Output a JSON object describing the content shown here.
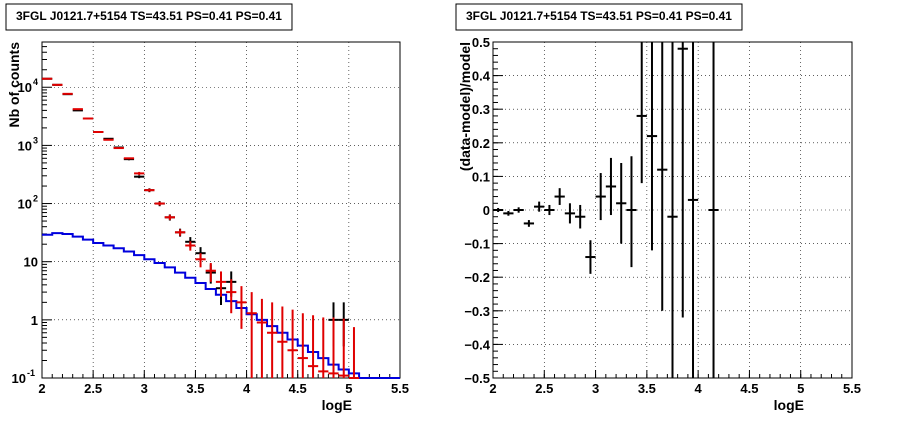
{
  "chart_data": [
    {
      "type": "scatter",
      "title": "3FGL J0121.7+5154 TS=43.51 PS=0.41 PS=0.41",
      "xlabel": "logE",
      "ylabel": "Nb of counts",
      "xlim": [
        2,
        5.5
      ],
      "ylim": [
        0.1,
        60000
      ],
      "yscale": "log",
      "grid": true,
      "xticks": [
        "2",
        "2.5",
        "3",
        "3.5",
        "4",
        "4.5",
        "5",
        "5.5"
      ],
      "yticks": [
        {
          "v": 0.1,
          "label": "10",
          "sup": "-1"
        },
        {
          "v": 1,
          "label": "1",
          "sup": ""
        },
        {
          "v": 10,
          "label": "10",
          "sup": ""
        },
        {
          "v": 100,
          "label": "10",
          "sup": "2"
        },
        {
          "v": 1000,
          "label": "10",
          "sup": "3"
        },
        {
          "v": 10000,
          "label": "10",
          "sup": "4"
        }
      ],
      "series": [
        {
          "color": "#000000",
          "style": "crosses",
          "points": [
            {
              "x": 2.05,
              "y": 14000,
              "lo": 13800,
              "hi": 14200
            },
            {
              "x": 2.15,
              "y": 11000,
              "lo": 10850,
              "hi": 11150
            },
            {
              "x": 2.25,
              "y": 7600,
              "lo": 7480,
              "hi": 7720
            },
            {
              "x": 2.35,
              "y": 4000,
              "lo": 3930,
              "hi": 4070
            },
            {
              "x": 2.45,
              "y": 2900,
              "lo": 2840,
              "hi": 2960
            },
            {
              "x": 2.55,
              "y": 1700,
              "lo": 1660,
              "hi": 1740
            },
            {
              "x": 2.65,
              "y": 1300,
              "lo": 1270,
              "hi": 1330
            },
            {
              "x": 2.75,
              "y": 920,
              "lo": 890,
              "hi": 950
            },
            {
              "x": 2.85,
              "y": 580,
              "lo": 555,
              "hi": 605
            },
            {
              "x": 2.95,
              "y": 290,
              "lo": 273,
              "hi": 307
            },
            {
              "x": 3.05,
              "y": 170,
              "lo": 157,
              "hi": 183
            },
            {
              "x": 3.15,
              "y": 100,
              "lo": 90,
              "hi": 110
            },
            {
              "x": 3.25,
              "y": 58,
              "lo": 51,
              "hi": 65
            },
            {
              "x": 3.35,
              "y": 32,
              "lo": 27,
              "hi": 37
            },
            {
              "x": 3.45,
              "y": 22,
              "lo": 17.5,
              "hi": 26.5
            },
            {
              "x": 3.55,
              "y": 14,
              "lo": 10.5,
              "hi": 17.8
            },
            {
              "x": 3.65,
              "y": 6.5,
              "lo": 4.2,
              "hi": 9
            },
            {
              "x": 3.75,
              "y": 3.5,
              "lo": 1.8,
              "hi": 5.5
            },
            {
              "x": 3.85,
              "y": 4.5,
              "lo": 2.5,
              "hi": 6.8
            },
            {
              "x": 4.85,
              "y": 1,
              "lo": 0.35,
              "hi": 2
            },
            {
              "x": 4.95,
              "y": 1,
              "lo": 0.35,
              "hi": 2
            }
          ]
        },
        {
          "color": "#e00000",
          "style": "model-points",
          "points": [
            {
              "x": 2.05,
              "y": 14000,
              "lo": 14000,
              "hi": 14000
            },
            {
              "x": 2.15,
              "y": 11000,
              "lo": 11000,
              "hi": 11000
            },
            {
              "x": 2.25,
              "y": 7700,
              "lo": 7700,
              "hi": 7700
            },
            {
              "x": 2.35,
              "y": 4200,
              "lo": 4200,
              "hi": 4200
            },
            {
              "x": 2.45,
              "y": 2900,
              "lo": 2900,
              "hi": 2900
            },
            {
              "x": 2.55,
              "y": 1700,
              "lo": 1700,
              "hi": 1700
            },
            {
              "x": 2.65,
              "y": 1250,
              "lo": 1250,
              "hi": 1250
            },
            {
              "x": 2.75,
              "y": 900,
              "lo": 900,
              "hi": 900
            },
            {
              "x": 2.85,
              "y": 600,
              "lo": 600,
              "hi": 600
            },
            {
              "x": 2.95,
              "y": 330,
              "lo": 310,
              "hi": 350
            },
            {
              "x": 3.05,
              "y": 170,
              "lo": 160,
              "hi": 180
            },
            {
              "x": 3.15,
              "y": 100,
              "lo": 93,
              "hi": 107
            },
            {
              "x": 3.25,
              "y": 58,
              "lo": 52,
              "hi": 64
            },
            {
              "x": 3.35,
              "y": 32,
              "lo": 28,
              "hi": 36
            },
            {
              "x": 3.45,
              "y": 19,
              "lo": 15.5,
              "hi": 22.5
            },
            {
              "x": 3.55,
              "y": 11,
              "lo": 8,
              "hi": 14
            },
            {
              "x": 3.65,
              "y": 7,
              "lo": 4.5,
              "hi": 9.5
            },
            {
              "x": 3.75,
              "y": 4.5,
              "lo": 2.5,
              "hi": 6.8
            },
            {
              "x": 3.85,
              "y": 3,
              "lo": 1.3,
              "hi": 5
            },
            {
              "x": 3.95,
              "y": 2,
              "lo": 0.7,
              "hi": 3.8
            },
            {
              "x": 4.05,
              "y": 1.3,
              "lo": 0.1,
              "hi": 3
            },
            {
              "x": 4.15,
              "y": 0.9,
              "lo": 0.1,
              "hi": 2.3
            },
            {
              "x": 4.25,
              "y": 0.6,
              "lo": 0.1,
              "hi": 2
            },
            {
              "x": 4.35,
              "y": 0.42,
              "lo": 0.1,
              "hi": 1.7
            },
            {
              "x": 4.45,
              "y": 0.3,
              "lo": 0.1,
              "hi": 1.5
            },
            {
              "x": 4.55,
              "y": 0.22,
              "lo": 0.1,
              "hi": 1.3
            },
            {
              "x": 4.65,
              "y": 0.16,
              "lo": 0.1,
              "hi": 1.2
            },
            {
              "x": 4.75,
              "y": 0.13,
              "lo": 0.1,
              "hi": 1.1
            },
            {
              "x": 4.85,
              "y": 0.12,
              "lo": 0.1,
              "hi": 1.1
            },
            {
              "x": 4.95,
              "y": 0.11,
              "lo": 0.1,
              "hi": 1.05
            },
            {
              "x": 5.05,
              "y": 0.1,
              "lo": 0.1,
              "hi": 0.75
            }
          ]
        },
        {
          "color": "#0000dd",
          "style": "step",
          "edges": [
            2.0,
            2.1,
            2.2,
            2.3,
            2.4,
            2.5,
            2.6,
            2.7,
            2.8,
            2.9,
            3.0,
            3.1,
            3.2,
            3.3,
            3.4,
            3.5,
            3.6,
            3.7,
            3.8,
            3.9,
            4.0,
            4.1,
            4.2,
            4.3,
            4.4,
            4.5,
            4.6,
            4.7,
            4.8,
            4.9,
            5.0,
            5.1,
            5.2,
            5.3,
            5.4,
            5.5
          ],
          "values": [
            29,
            31,
            30,
            27,
            24,
            21,
            19,
            17,
            15,
            13,
            11,
            9.5,
            8,
            6.5,
            5.3,
            4.3,
            3.4,
            2.7,
            2.1,
            1.6,
            1.25,
            1.0,
            0.78,
            0.6,
            0.46,
            0.36,
            0.28,
            0.22,
            0.17,
            0.14,
            0.12,
            0.1,
            0.1,
            0.1,
            0.1
          ]
        }
      ]
    },
    {
      "type": "scatter",
      "title": "3FGL J0121.7+5154 TS=43.51 PS=0.41 PS=0.41",
      "xlabel": "logE",
      "ylabel": "(data-model)/model",
      "xlim": [
        2,
        5.5
      ],
      "ylim": [
        -0.5,
        0.5
      ],
      "yscale": "linear",
      "grid": true,
      "xticks": [
        "2",
        "2.5",
        "3",
        "3.5",
        "4",
        "4.5",
        "5",
        "5.5"
      ],
      "yticks": [
        "-0.5",
        "-0.4",
        "-0.3",
        "-0.2",
        "-0.1",
        "0",
        "0.1",
        "0.2",
        "0.3",
        "0.4",
        "0.5"
      ],
      "points": [
        {
          "x": 2.05,
          "y": 0.0,
          "lo": -0.006,
          "hi": 0.006
        },
        {
          "x": 2.15,
          "y": -0.01,
          "lo": -0.017,
          "hi": -0.003
        },
        {
          "x": 2.25,
          "y": 0.0,
          "lo": -0.008,
          "hi": 0.008
        },
        {
          "x": 2.35,
          "y": -0.04,
          "lo": -0.05,
          "hi": -0.03
        },
        {
          "x": 2.45,
          "y": 0.01,
          "lo": -0.005,
          "hi": 0.025
        },
        {
          "x": 2.55,
          "y": 0.0,
          "lo": -0.015,
          "hi": 0.015
        },
        {
          "x": 2.65,
          "y": 0.04,
          "lo": 0.015,
          "hi": 0.065
        },
        {
          "x": 2.75,
          "y": -0.01,
          "lo": -0.04,
          "hi": 0.02
        },
        {
          "x": 2.85,
          "y": -0.02,
          "lo": -0.055,
          "hi": 0.015
        },
        {
          "x": 2.95,
          "y": -0.14,
          "lo": -0.19,
          "hi": -0.09
        },
        {
          "x": 3.05,
          "y": 0.04,
          "lo": -0.03,
          "hi": 0.11
        },
        {
          "x": 3.15,
          "y": 0.07,
          "lo": -0.015,
          "hi": 0.155
        },
        {
          "x": 3.25,
          "y": 0.02,
          "lo": -0.1,
          "hi": 0.14
        },
        {
          "x": 3.35,
          "y": 0.0,
          "lo": -0.17,
          "hi": 0.16
        },
        {
          "x": 3.45,
          "y": 0.28,
          "lo": 0.08,
          "hi": 0.5
        },
        {
          "x": 3.55,
          "y": 0.22,
          "lo": -0.12,
          "hi": 0.5
        },
        {
          "x": 3.65,
          "y": 0.12,
          "lo": -0.3,
          "hi": 0.5
        },
        {
          "x": 3.75,
          "y": -0.02,
          "lo": -0.5,
          "hi": 0.5
        },
        {
          "x": 3.85,
          "y": 0.48,
          "lo": -0.32,
          "hi": 0.5
        },
        {
          "x": 3.95,
          "y": 0.03,
          "lo": -0.5,
          "hi": 0.5
        },
        {
          "x": 4.15,
          "y": 0.0,
          "lo": -0.5,
          "hi": 0.5
        }
      ]
    }
  ]
}
